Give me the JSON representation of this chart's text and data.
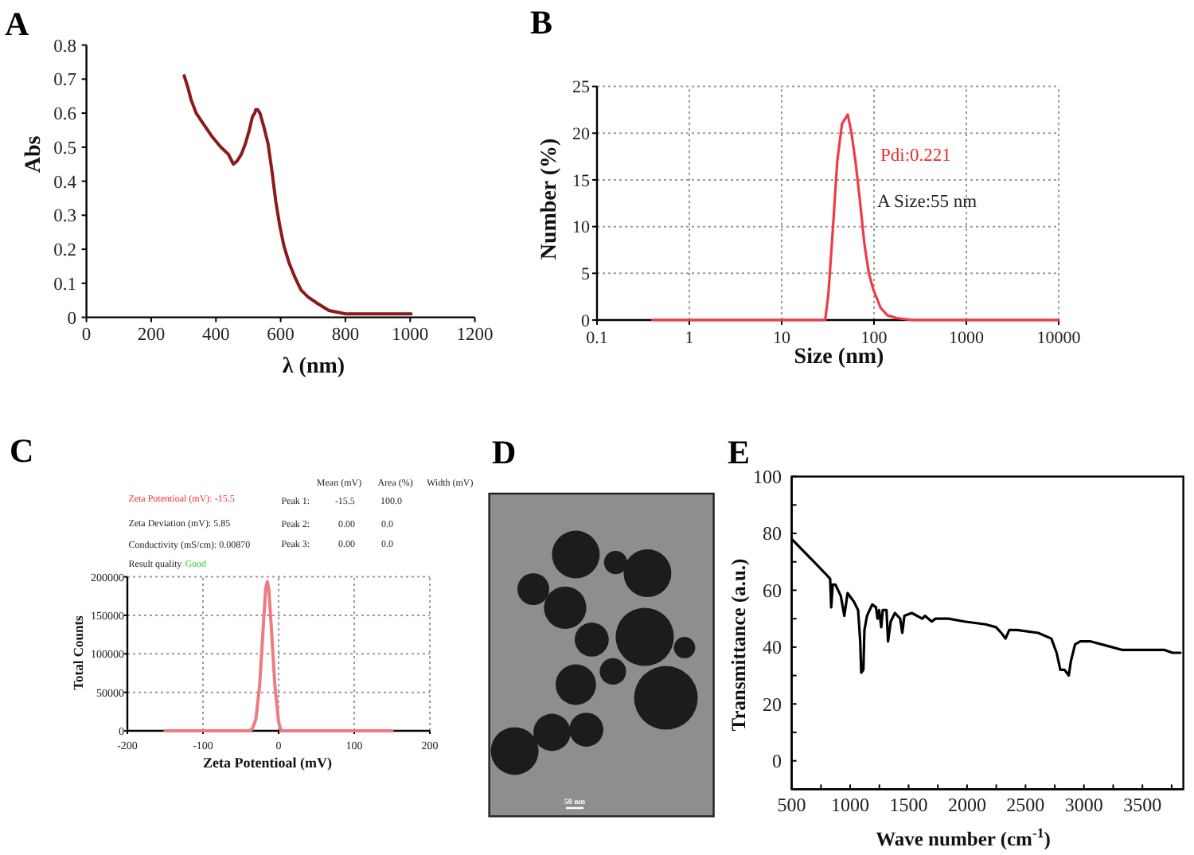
{
  "chart_data": [
    {
      "type": "line",
      "title": "A",
      "xlabel": "λ (nm)",
      "ylabel": "Abs",
      "xlim": [
        0,
        1200
      ],
      "ylim": [
        0,
        0.8
      ],
      "xticks": [
        0,
        200,
        400,
        600,
        800,
        1000,
        1200
      ],
      "yticks": [
        0,
        0.1,
        0.2,
        0.3,
        0.4,
        0.5,
        0.6,
        0.7,
        0.8
      ],
      "series": [
        {
          "color": "#8b1a1a",
          "x": [
            302,
            315,
            323,
            339,
            360,
            389,
            415,
            438,
            454,
            466,
            479,
            491,
            503,
            513,
            520,
            523,
            529,
            536,
            548,
            561,
            573,
            585,
            597,
            610,
            626,
            643,
            663,
            684,
            715,
            749,
            800,
            880,
            940,
            1003
          ],
          "values": [
            0.71,
            0.67,
            0.64,
            0.6,
            0.57,
            0.53,
            0.5,
            0.48,
            0.45,
            0.46,
            0.48,
            0.51,
            0.55,
            0.59,
            0.6,
            0.61,
            0.61,
            0.6,
            0.56,
            0.51,
            0.43,
            0.34,
            0.27,
            0.21,
            0.16,
            0.12,
            0.08,
            0.06,
            0.04,
            0.02,
            0.01,
            0.01,
            0.01,
            0.01
          ]
        }
      ]
    },
    {
      "type": "line",
      "title": "B",
      "xlabel": "Size (nm)",
      "ylabel": "Number (%)",
      "log": "x",
      "xlim": [
        0.1,
        10000
      ],
      "ylim": [
        0,
        25
      ],
      "xticks": [
        0.1,
        1,
        10,
        100,
        1000,
        10000
      ],
      "yticks": [
        0,
        5,
        10,
        15,
        20,
        25
      ],
      "grid": true,
      "annotations": [
        "Pdi:0.221",
        "A Size:55 nm"
      ],
      "series": [
        {
          "color": "#ee3b45",
          "x": [
            0.4,
            29.6,
            32,
            36,
            40,
            45,
            52,
            57,
            63,
            70,
            79,
            88,
            98,
            118,
            140,
            176,
            263,
            10000
          ],
          "values": [
            0,
            0,
            2.7,
            10,
            17,
            21,
            22,
            20,
            17,
            13,
            8,
            5,
            3.3,
            1.3,
            0.5,
            0.2,
            0,
            0
          ]
        }
      ]
    },
    {
      "type": "line",
      "title": "C",
      "xlabel": "Zeta Potentioal (mV)",
      "ylabel": "Total Counts",
      "xlim": [
        -200,
        200
      ],
      "ylim": [
        0,
        200000
      ],
      "xticks": [
        -200,
        -100,
        0,
        100,
        200
      ],
      "yticks": [
        0,
        50000,
        100000,
        150000,
        200000
      ],
      "grid": true,
      "annotations": [
        "Zeta Potentioal (mV): -15.5",
        "Zeta Deviation (mV): 5.85",
        "Conductivity (mS/cm): 0.00870",
        "Result quality",
        "Good",
        "Mean (mV)",
        "Area (%)",
        "Width (mV)",
        "Peak 1:",
        "-15.5",
        "100.0",
        "Peak 2:",
        "0.00",
        "0.0",
        "Peak 3:",
        "0.00",
        "0.0"
      ],
      "series": [
        {
          "color": "#ef7b80",
          "x": [
            -150,
            -40,
            -35,
            -30,
            -25,
            -20,
            -17,
            -15,
            -13,
            -10,
            -5,
            0,
            3,
            150
          ],
          "values": [
            0,
            0,
            2000,
            15000,
            60000,
            140000,
            185000,
            194000,
            185000,
            140000,
            60000,
            12000,
            0,
            0
          ]
        }
      ]
    },
    {
      "type": "other",
      "title": "D",
      "annotations": [
        "50 nm"
      ]
    },
    {
      "type": "line",
      "title": "E",
      "xlabel": "Wave number (cm$^{-1}$)",
      "ylabel": "Transmittance (a.u.)",
      "xlim": [
        500,
        3850
      ],
      "ylim": [
        -10,
        100
      ],
      "xticks": [
        500,
        {
          "value": 750,
          "label": null
        },
        1000,
        {
          "value": 1250,
          "label": null
        },
        1500,
        {
          "value": 1750,
          "label": null
        },
        2000,
        {
          "value": 2250,
          "label": null
        },
        2500,
        {
          "value": 2750,
          "label": null
        },
        3000,
        {
          "value": 3250,
          "label": null
        },
        3500,
        {
          "value": 3750,
          "label": null
        }
      ],
      "yticks": [
        0,
        {
          "value": 10,
          "label": null
        },
        20,
        {
          "value": 30,
          "label": null
        },
        40,
        {
          "value": 50,
          "label": null
        },
        60,
        {
          "value": 70,
          "label": null
        },
        80,
        {
          "value": 90,
          "label": null
        },
        100
      ],
      "series": [
        {
          "color": "#000000",
          "x": [
            500,
            595,
            690,
            785,
            829,
            838,
            851,
            874,
            920,
            950,
            978,
            1032,
            1068,
            1086,
            1095,
            1113,
            1122,
            1144,
            1189,
            1221,
            1234,
            1248,
            1266,
            1279,
            1311,
            1324,
            1347,
            1383,
            1428,
            1446,
            1464,
            1527,
            1617,
            1640,
            1698,
            1730,
            1842,
            1978,
            2158,
            2248,
            2293,
            2329,
            2361,
            2428,
            2608,
            2721,
            2766,
            2798,
            2834,
            2870,
            2888,
            2924,
            2969,
            3058,
            3239,
            3329,
            3509,
            3690,
            3757,
            3825
          ],
          "values": [
            78,
            74,
            70,
            66,
            64,
            54,
            62,
            62,
            58,
            51,
            59,
            56,
            53,
            42,
            31,
            32,
            46,
            51,
            55,
            54,
            50,
            53,
            47,
            53,
            53,
            42,
            49,
            52,
            50,
            45,
            51,
            52,
            50,
            51,
            49,
            50,
            50,
            49,
            48,
            47,
            45,
            43,
            46,
            46,
            45,
            43,
            38,
            32,
            32,
            30,
            35,
            41,
            42,
            42,
            40,
            39,
            39,
            39,
            38,
            38
          ]
        }
      ]
    }
  ]
}
